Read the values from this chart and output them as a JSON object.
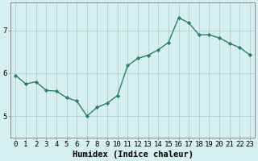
{
  "x": [
    0,
    1,
    2,
    3,
    4,
    5,
    6,
    7,
    8,
    9,
    10,
    11,
    12,
    13,
    14,
    15,
    16,
    17,
    18,
    19,
    20,
    21,
    22,
    23
  ],
  "y": [
    5.95,
    5.75,
    5.8,
    5.6,
    5.58,
    5.43,
    5.35,
    5.0,
    5.2,
    5.3,
    5.48,
    6.18,
    6.35,
    6.42,
    6.55,
    6.72,
    7.3,
    7.18,
    6.9,
    6.9,
    6.83,
    6.7,
    6.6,
    6.43
  ],
  "line_color": "#2e7d6e",
  "marker": "D",
  "marker_size": 2.2,
  "bg_color": "#d6eff0",
  "grid_color": "#b0cece",
  "xlabel": "Humidex (Indice chaleur)",
  "ylim": [
    4.5,
    7.65
  ],
  "yticks": [
    5,
    6,
    7
  ],
  "xlim": [
    -0.5,
    23.5
  ],
  "xlabel_fontsize": 7.5,
  "tick_fontsize": 6.5,
  "linewidth": 1.0
}
